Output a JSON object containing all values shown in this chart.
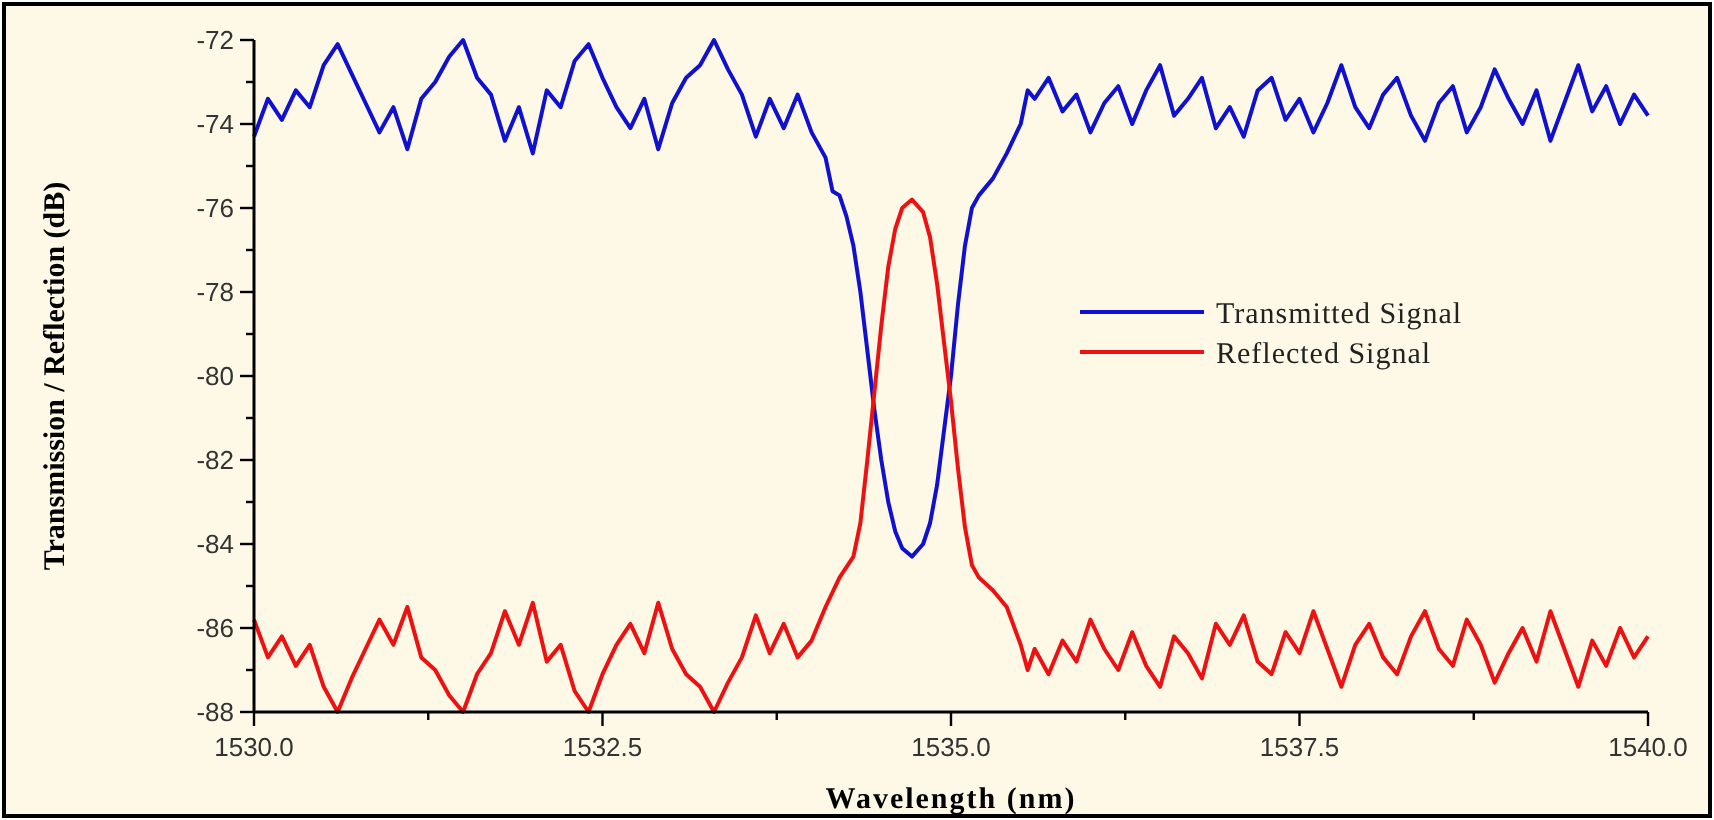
{
  "chart_data": {
    "type": "line",
    "xlabel": "Wavelength (nm)",
    "ylabel": "Transmission / Reflection (dB)",
    "legend": "right",
    "xlim": [
      1530,
      1540
    ],
    "ylim": [
      -88,
      -72
    ],
    "xticks": [
      {
        "value": 1530,
        "label": "1530.0"
      },
      {
        "value": 1531.25,
        "label": null
      },
      {
        "value": 1532.5,
        "label": "1532.5"
      },
      {
        "value": 1533.75,
        "label": null
      },
      {
        "value": 1535,
        "label": "1535.0"
      },
      {
        "value": 1536.25,
        "label": null
      },
      {
        "value": 1537.5,
        "label": "1537.5"
      },
      {
        "value": 1538.75,
        "label": null
      },
      {
        "value": 1540,
        "label": "1540.0"
      }
    ],
    "yticks": [
      -88,
      {
        "value": -87,
        "label": null
      },
      -86,
      {
        "value": -85,
        "label": null
      },
      -84,
      {
        "value": -83,
        "label": null
      },
      -82,
      {
        "value": -81,
        "label": null
      },
      -80,
      {
        "value": -79,
        "label": null
      },
      -78,
      {
        "value": -77,
        "label": null
      },
      -76,
      {
        "value": -75,
        "label": null
      },
      -74,
      {
        "value": -73,
        "label": null
      },
      -72
    ],
    "series": [
      {
        "name": "Transmitted Signal",
        "color": "#1010d0",
        "x": [
          1530.0,
          1530.1,
          1530.2,
          1530.3,
          1530.4,
          1530.5,
          1530.6,
          1530.7,
          1530.8,
          1530.9,
          1531.0,
          1531.1,
          1531.2,
          1531.3,
          1531.4,
          1531.5,
          1531.6,
          1531.7,
          1531.8,
          1531.9,
          1532.0,
          1532.1,
          1532.2,
          1532.3,
          1532.4,
          1532.5,
          1532.6,
          1532.7,
          1532.8,
          1532.9,
          1533.0,
          1533.1,
          1533.2,
          1533.3,
          1533.4,
          1533.5,
          1533.6,
          1533.7,
          1533.8,
          1533.9,
          1534.0,
          1534.1,
          1534.15,
          1534.2,
          1534.25,
          1534.3,
          1534.35,
          1534.4,
          1534.45,
          1534.5,
          1534.55,
          1534.6,
          1534.65,
          1534.72,
          1534.8,
          1534.85,
          1534.9,
          1534.95,
          1535.0,
          1535.05,
          1535.1,
          1535.15,
          1535.2,
          1535.3,
          1535.4,
          1535.5,
          1535.55,
          1535.6,
          1535.7,
          1535.8,
          1535.9,
          1536.0,
          1536.1,
          1536.2,
          1536.3,
          1536.4,
          1536.5,
          1536.6,
          1536.7,
          1536.8,
          1536.9,
          1537.0,
          1537.1,
          1537.2,
          1537.3,
          1537.4,
          1537.5,
          1537.6,
          1537.7,
          1537.8,
          1537.9,
          1538.0,
          1538.1,
          1538.2,
          1538.3,
          1538.4,
          1538.5,
          1538.6,
          1538.7,
          1538.8,
          1538.9,
          1539.0,
          1539.1,
          1539.2,
          1539.3,
          1539.4,
          1539.5,
          1539.6,
          1539.7,
          1539.8,
          1539.9,
          1540.0
        ],
        "values": [
          -74.3,
          -73.4,
          -73.9,
          -73.2,
          -73.6,
          -72.6,
          -72.1,
          -72.8,
          -73.5,
          -74.2,
          -73.6,
          -74.6,
          -73.4,
          -73.0,
          -72.4,
          -72.0,
          -72.9,
          -73.3,
          -74.4,
          -73.6,
          -74.7,
          -73.2,
          -73.6,
          -72.5,
          -72.1,
          -72.9,
          -73.6,
          -74.1,
          -73.4,
          -74.6,
          -73.5,
          -72.9,
          -72.6,
          -72.0,
          -72.7,
          -73.3,
          -74.3,
          -73.4,
          -74.1,
          -73.3,
          -74.2,
          -74.8,
          -75.6,
          -75.7,
          -76.2,
          -76.9,
          -78.0,
          -79.4,
          -80.8,
          -82.0,
          -83.0,
          -83.7,
          -84.1,
          -84.3,
          -84.0,
          -83.5,
          -82.6,
          -81.3,
          -80.0,
          -78.3,
          -76.9,
          -76.0,
          -75.7,
          -75.3,
          -74.7,
          -74.0,
          -73.2,
          -73.4,
          -72.9,
          -73.7,
          -73.3,
          -74.2,
          -73.5,
          -73.1,
          -74.0,
          -73.2,
          -72.6,
          -73.8,
          -73.4,
          -72.9,
          -74.1,
          -73.6,
          -74.3,
          -73.2,
          -72.9,
          -73.9,
          -73.4,
          -74.2,
          -73.5,
          -72.6,
          -73.6,
          -74.1,
          -73.3,
          -72.9,
          -73.8,
          -74.4,
          -73.5,
          -73.1,
          -74.2,
          -73.6,
          -72.7,
          -73.4,
          -74.0,
          -73.2,
          -74.4,
          -73.5,
          -72.6,
          -73.7,
          -73.1,
          -74.0,
          -73.3,
          -73.8
        ]
      },
      {
        "name": "Reflected Signal",
        "color": "#ee1111",
        "x": [
          1530.0,
          1530.1,
          1530.2,
          1530.3,
          1530.4,
          1530.5,
          1530.6,
          1530.7,
          1530.8,
          1530.9,
          1531.0,
          1531.1,
          1531.2,
          1531.3,
          1531.4,
          1531.5,
          1531.6,
          1531.7,
          1531.8,
          1531.9,
          1532.0,
          1532.1,
          1532.2,
          1532.3,
          1532.4,
          1532.5,
          1532.6,
          1532.7,
          1532.8,
          1532.9,
          1533.0,
          1533.1,
          1533.2,
          1533.3,
          1533.4,
          1533.5,
          1533.6,
          1533.7,
          1533.8,
          1533.9,
          1534.0,
          1534.1,
          1534.2,
          1534.3,
          1534.35,
          1534.4,
          1534.45,
          1534.5,
          1534.55,
          1534.6,
          1534.65,
          1534.72,
          1534.8,
          1534.85,
          1534.9,
          1534.95,
          1535.0,
          1535.05,
          1535.1,
          1535.15,
          1535.2,
          1535.3,
          1535.4,
          1535.5,
          1535.55,
          1535.6,
          1535.7,
          1535.8,
          1535.9,
          1536.0,
          1536.1,
          1536.2,
          1536.3,
          1536.4,
          1536.5,
          1536.6,
          1536.7,
          1536.8,
          1536.9,
          1537.0,
          1537.1,
          1537.2,
          1537.3,
          1537.4,
          1537.5,
          1537.6,
          1537.7,
          1537.8,
          1537.9,
          1538.0,
          1538.1,
          1538.2,
          1538.3,
          1538.4,
          1538.5,
          1538.6,
          1538.7,
          1538.8,
          1538.9,
          1539.0,
          1539.1,
          1539.2,
          1539.3,
          1539.4,
          1539.5,
          1539.6,
          1539.7,
          1539.8,
          1539.9,
          1540.0
        ],
        "values": [
          -85.8,
          -86.7,
          -86.2,
          -86.9,
          -86.4,
          -87.4,
          -88.0,
          -87.2,
          -86.5,
          -85.8,
          -86.4,
          -85.5,
          -86.7,
          -87.0,
          -87.6,
          -88.0,
          -87.1,
          -86.6,
          -85.6,
          -86.4,
          -85.4,
          -86.8,
          -86.4,
          -87.5,
          -88.0,
          -87.1,
          -86.4,
          -85.9,
          -86.6,
          -85.4,
          -86.5,
          -87.1,
          -87.4,
          -88.0,
          -87.3,
          -86.7,
          -85.7,
          -86.6,
          -85.9,
          -86.7,
          -86.3,
          -85.5,
          -84.8,
          -84.3,
          -83.5,
          -82.0,
          -80.4,
          -78.8,
          -77.4,
          -76.5,
          -76.0,
          -75.8,
          -76.1,
          -76.7,
          -77.8,
          -79.2,
          -80.6,
          -82.2,
          -83.6,
          -84.5,
          -84.8,
          -85.1,
          -85.5,
          -86.4,
          -87.0,
          -86.5,
          -87.1,
          -86.3,
          -86.8,
          -85.8,
          -86.5,
          -87.0,
          -86.1,
          -86.9,
          -87.4,
          -86.2,
          -86.6,
          -87.2,
          -85.9,
          -86.4,
          -85.7,
          -86.8,
          -87.1,
          -86.1,
          -86.6,
          -85.6,
          -86.5,
          -87.4,
          -86.4,
          -85.9,
          -86.7,
          -87.1,
          -86.2,
          -85.6,
          -86.5,
          -86.9,
          -85.8,
          -86.4,
          -87.3,
          -86.6,
          -86.0,
          -86.8,
          -85.6,
          -86.5,
          -87.4,
          -86.3,
          -86.9,
          -86.0,
          -86.7,
          -86.2
        ]
      }
    ]
  }
}
